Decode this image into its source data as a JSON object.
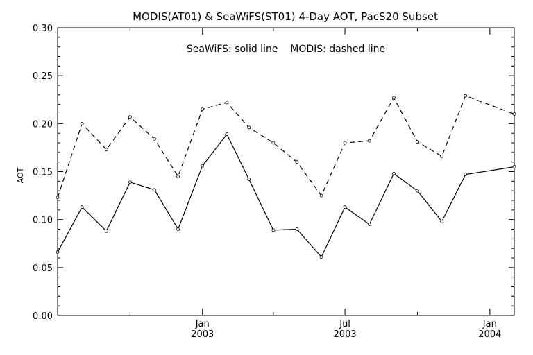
{
  "chart_data": {
    "type": "line",
    "title": "MODIS(AT01) & SeaWiFS(ST01) 4-Day AOT, PacS20 Subset",
    "annotation": "SeaWiFS: solid line    MODIS: dashed line",
    "ylabel": "AOT",
    "xlabel": "",
    "ylim": [
      0.0,
      0.3
    ],
    "xlim": [
      "2002-07-01",
      "2004-02-01"
    ],
    "grid": false,
    "y_ticks": [
      "0.00",
      "0.05",
      "0.10",
      "0.15",
      "0.20",
      "0.25",
      "0.30"
    ],
    "x_tick_labels": [
      {
        "month": "Jan",
        "year": "2003",
        "date": "2003-01-01"
      },
      {
        "month": "Jul",
        "year": "2003",
        "date": "2003-07-01"
      },
      {
        "month": "Jan",
        "year": "2004",
        "date": "2004-01-01"
      }
    ],
    "series": [
      {
        "name": "SeaWiFS",
        "style": "solid",
        "color": "#000000",
        "points": [
          {
            "x": "2002-07-01",
            "y": 0.066
          },
          {
            "x": "2002-08-01",
            "y": 0.113
          },
          {
            "x": "2002-09-01",
            "y": 0.088
          },
          {
            "x": "2002-10-01",
            "y": 0.139
          },
          {
            "x": "2002-11-01",
            "y": 0.131
          },
          {
            "x": "2002-12-01",
            "y": 0.09
          },
          {
            "x": "2003-01-01",
            "y": 0.156
          },
          {
            "x": "2003-02-01",
            "y": 0.189
          },
          {
            "x": "2003-03-01",
            "y": 0.142
          },
          {
            "x": "2003-04-01",
            "y": 0.089
          },
          {
            "x": "2003-05-01",
            "y": 0.09
          },
          {
            "x": "2003-06-01",
            "y": 0.061
          },
          {
            "x": "2003-07-01",
            "y": 0.113
          },
          {
            "x": "2003-08-01",
            "y": 0.095
          },
          {
            "x": "2003-09-01",
            "y": 0.148
          },
          {
            "x": "2003-10-01",
            "y": 0.13
          },
          {
            "x": "2003-11-01",
            "y": 0.098
          },
          {
            "x": "2003-12-01",
            "y": 0.147
          },
          {
            "x": "2004-02-01",
            "y": 0.155
          }
        ]
      },
      {
        "name": "MODIS",
        "style": "dashed",
        "color": "#000000",
        "points": [
          {
            "x": "2002-07-01",
            "y": 0.123
          },
          {
            "x": "2002-08-01",
            "y": 0.2
          },
          {
            "x": "2002-09-01",
            "y": 0.173
          },
          {
            "x": "2002-10-01",
            "y": 0.207
          },
          {
            "x": "2002-11-01",
            "y": 0.184
          },
          {
            "x": "2002-12-01",
            "y": 0.145
          },
          {
            "x": "2003-01-01",
            "y": 0.215
          },
          {
            "x": "2003-02-01",
            "y": 0.222
          },
          {
            "x": "2003-03-01",
            "y": 0.196
          },
          {
            "x": "2003-04-01",
            "y": 0.18
          },
          {
            "x": "2003-05-01",
            "y": 0.16
          },
          {
            "x": "2003-06-01",
            "y": 0.125
          },
          {
            "x": "2003-07-01",
            "y": 0.18
          },
          {
            "x": "2003-08-01",
            "y": 0.182
          },
          {
            "x": "2003-09-01",
            "y": 0.227
          },
          {
            "x": "2003-10-01",
            "y": 0.181
          },
          {
            "x": "2003-11-01",
            "y": 0.166
          },
          {
            "x": "2003-12-01",
            "y": 0.229
          },
          {
            "x": "2004-02-01",
            "y": 0.21
          }
        ]
      }
    ]
  }
}
